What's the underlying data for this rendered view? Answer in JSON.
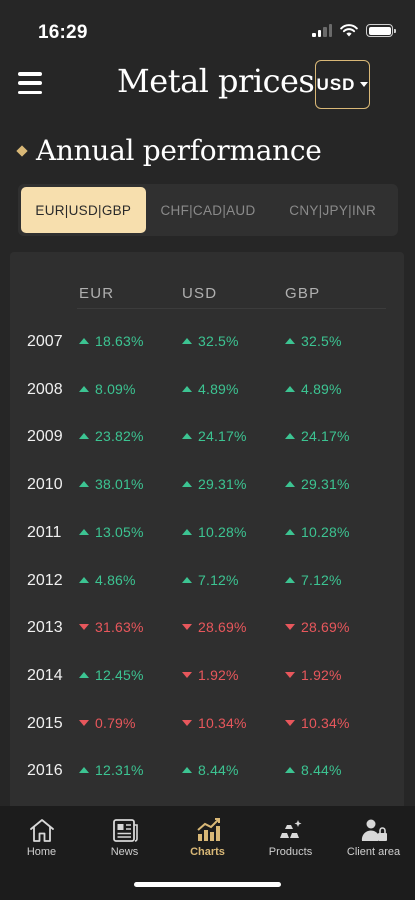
{
  "status": {
    "time": "16:29"
  },
  "header": {
    "title": "Metal prices",
    "currency": "USD"
  },
  "section": {
    "title": "Annual performance"
  },
  "tabs": [
    {
      "label": "EUR|USD|GBP",
      "active": true
    },
    {
      "label": "CHF|CAD|AUD",
      "active": false
    },
    {
      "label": "CNY|JPY|INR",
      "active": false
    }
  ],
  "table": {
    "columns": [
      "EUR",
      "USD",
      "GBP"
    ],
    "rows": [
      {
        "year": "2007",
        "cells": [
          {
            "value": "18.63%",
            "dir": "up"
          },
          {
            "value": "32.5%",
            "dir": "up"
          },
          {
            "value": "32.5%",
            "dir": "up"
          }
        ]
      },
      {
        "year": "2008",
        "cells": [
          {
            "value": "8.09%",
            "dir": "up"
          },
          {
            "value": "4.89%",
            "dir": "up"
          },
          {
            "value": "4.89%",
            "dir": "up"
          }
        ]
      },
      {
        "year": "2009",
        "cells": [
          {
            "value": "23.82%",
            "dir": "up"
          },
          {
            "value": "24.17%",
            "dir": "up"
          },
          {
            "value": "24.17%",
            "dir": "up"
          }
        ]
      },
      {
        "year": "2010",
        "cells": [
          {
            "value": "38.01%",
            "dir": "up"
          },
          {
            "value": "29.31%",
            "dir": "up"
          },
          {
            "value": "29.31%",
            "dir": "up"
          }
        ]
      },
      {
        "year": "2011",
        "cells": [
          {
            "value": "13.05%",
            "dir": "up"
          },
          {
            "value": "10.28%",
            "dir": "up"
          },
          {
            "value": "10.28%",
            "dir": "up"
          }
        ]
      },
      {
        "year": "2012",
        "cells": [
          {
            "value": "4.86%",
            "dir": "up"
          },
          {
            "value": "7.12%",
            "dir": "up"
          },
          {
            "value": "7.12%",
            "dir": "up"
          }
        ]
      },
      {
        "year": "2013",
        "cells": [
          {
            "value": "31.63%",
            "dir": "down"
          },
          {
            "value": "28.69%",
            "dir": "down"
          },
          {
            "value": "28.69%",
            "dir": "down"
          }
        ]
      },
      {
        "year": "2014",
        "cells": [
          {
            "value": "12.45%",
            "dir": "up"
          },
          {
            "value": "1.92%",
            "dir": "down"
          },
          {
            "value": "1.92%",
            "dir": "down"
          }
        ]
      },
      {
        "year": "2015",
        "cells": [
          {
            "value": "0.79%",
            "dir": "down"
          },
          {
            "value": "10.34%",
            "dir": "down"
          },
          {
            "value": "10.34%",
            "dir": "down"
          }
        ]
      },
      {
        "year": "2016",
        "cells": [
          {
            "value": "12.31%",
            "dir": "up"
          },
          {
            "value": "8.44%",
            "dir": "up"
          },
          {
            "value": "8.44%",
            "dir": "up"
          }
        ]
      }
    ]
  },
  "nav": [
    {
      "label": "Home",
      "icon": "home-icon",
      "active": false
    },
    {
      "label": "News",
      "icon": "news-icon",
      "active": false
    },
    {
      "label": "Charts",
      "icon": "charts-icon",
      "active": true
    },
    {
      "label": "Products",
      "icon": "products-icon",
      "active": false
    },
    {
      "label": "Client area",
      "icon": "client-area-icon",
      "active": false
    }
  ],
  "colors": {
    "accent": "#d9b877",
    "tab_active_bg": "#f7dfae",
    "up": "#3cc492",
    "down": "#e8575c",
    "background": "#262626"
  }
}
